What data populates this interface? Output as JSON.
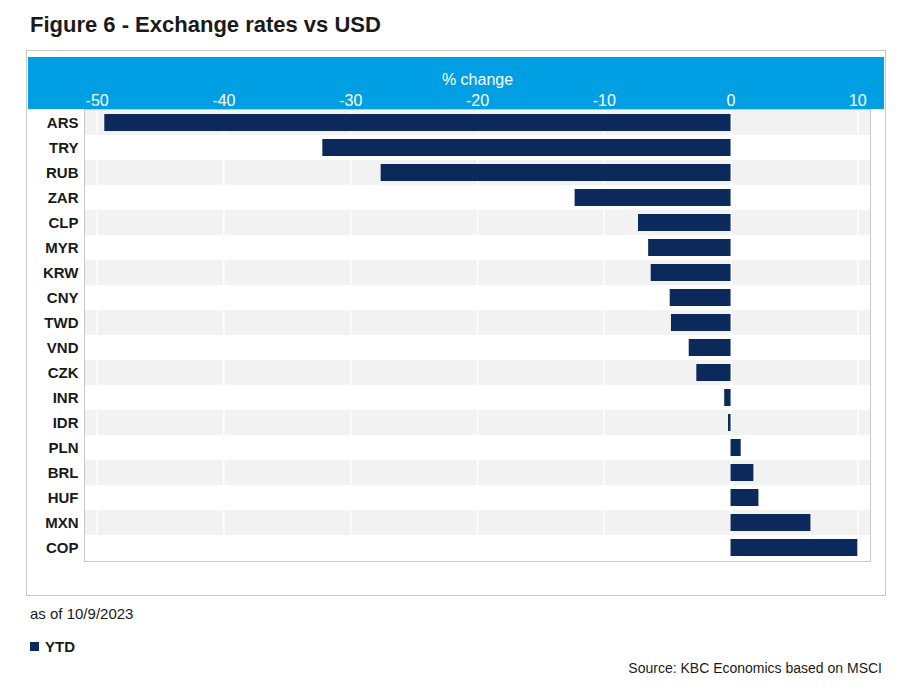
{
  "chart_data": {
    "type": "bar",
    "title": "Figure 6 - Exchange rates vs USD",
    "x_label": "% change",
    "orientation": "horizontal",
    "categories": [
      "ARS",
      "TRY",
      "RUB",
      "ZAR",
      "CLP",
      "MYR",
      "KRW",
      "CNY",
      "TWD",
      "VND",
      "CZK",
      "INR",
      "IDR",
      "PLN",
      "BRL",
      "HUF",
      "MXN",
      "COP"
    ],
    "series": [
      {
        "name": "YTD",
        "color": "#0b2a5b",
        "values": [
          -49.4,
          -32.2,
          -27.6,
          -12.3,
          -7.3,
          -6.5,
          -6.3,
          -4.8,
          -4.7,
          -3.3,
          -2.7,
          -0.5,
          -0.2,
          0.8,
          1.8,
          2.2,
          6.3,
          10.0
        ]
      }
    ],
    "xlim": [
      -51,
      11
    ],
    "xticks": [
      -50,
      -40,
      -30,
      -20,
      -10,
      0,
      10
    ],
    "grid": true,
    "legend": "bottom-left",
    "annotations": [
      "as of 10/9/2023",
      "Source: KBC Economics based on MSCI"
    ]
  }
}
